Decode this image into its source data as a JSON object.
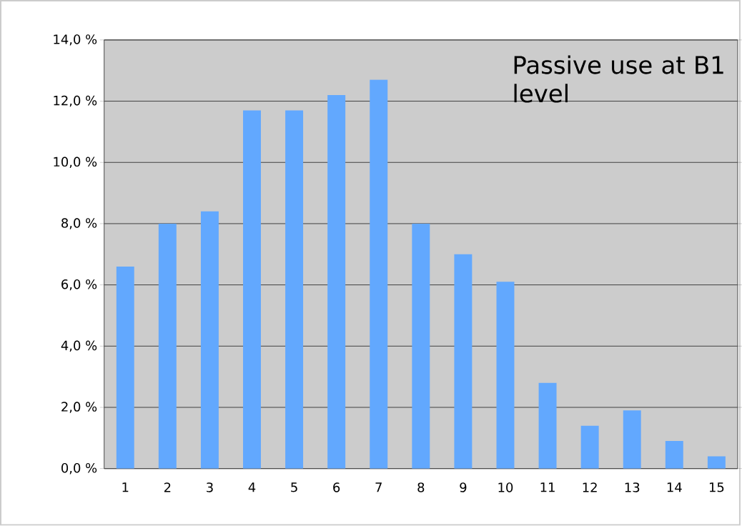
{
  "chart_data": {
    "type": "bar",
    "categories": [
      "1",
      "2",
      "3",
      "4",
      "5",
      "6",
      "7",
      "8",
      "9",
      "10",
      "11",
      "12",
      "13",
      "14",
      "15"
    ],
    "values": [
      6.6,
      8.0,
      8.4,
      11.7,
      11.7,
      12.2,
      12.7,
      8.0,
      7.0,
      6.1,
      2.8,
      1.4,
      1.9,
      0.9,
      0.4
    ],
    "color": "#62a8fe",
    "ylim": [
      0,
      14
    ],
    "yticks": [
      {
        "value": 0,
        "label": "0,0 %"
      },
      {
        "value": 2,
        "label": "2,0 %"
      },
      {
        "value": 4,
        "label": "4,0 %"
      },
      {
        "value": 6,
        "label": "6,0 %"
      },
      {
        "value": 8,
        "label": "8,0 %"
      },
      {
        "value": 10,
        "label": "10,0 %"
      },
      {
        "value": 12,
        "label": "12,0 %"
      },
      {
        "value": 14,
        "label": "14,0 %"
      }
    ],
    "grid": "y",
    "annotations": [
      "Passive use at B1 level"
    ]
  }
}
